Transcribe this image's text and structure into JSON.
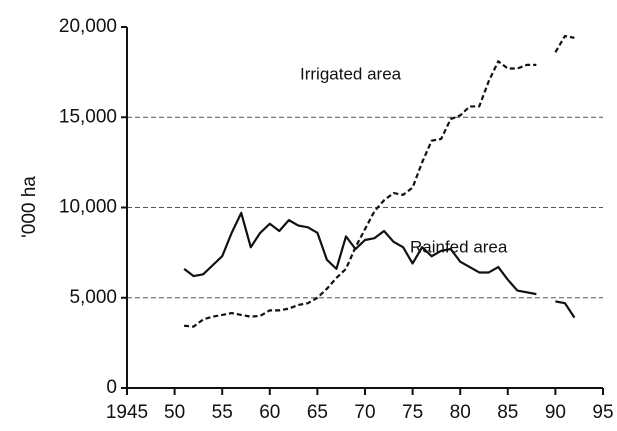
{
  "chart_data": {
    "type": "line",
    "y_label": "'000 ha",
    "x": [
      1951,
      1952,
      1953,
      1954,
      1955,
      1956,
      1957,
      1958,
      1959,
      1960,
      1961,
      1962,
      1963,
      1964,
      1965,
      1966,
      1967,
      1968,
      1969,
      1970,
      1971,
      1972,
      1973,
      1974,
      1975,
      1976,
      1977,
      1978,
      1979,
      1980,
      1981,
      1982,
      1983,
      1984,
      1985,
      1986,
      1987,
      1988,
      1989,
      1990,
      1991,
      1992
    ],
    "series": [
      {
        "name": "Irrigated area",
        "color": "#111111",
        "line_style": "dashed",
        "values": [
          3450,
          3400,
          3800,
          3950,
          4050,
          4150,
          4050,
          3950,
          4000,
          4300,
          4300,
          4400,
          4600,
          4700,
          5000,
          5500,
          6100,
          6600,
          7800,
          8800,
          9800,
          10400,
          10800,
          10700,
          11100,
          12500,
          13700,
          13800,
          14900,
          15100,
          15600,
          15600,
          17000,
          18100,
          17700,
          17700,
          17900,
          17900,
          null,
          18600,
          19500,
          19400
        ]
      },
      {
        "name": "Rainfed area",
        "color": "#111111",
        "line_style": "solid",
        "values": [
          6600,
          6200,
          6300,
          6800,
          7300,
          8600,
          9700,
          7800,
          8600,
          9100,
          8700,
          9300,
          9000,
          8900,
          8600,
          7100,
          6600,
          8400,
          7700,
          8200,
          8300,
          8700,
          8100,
          7800,
          6900,
          7800,
          7300,
          7600,
          7700,
          7000,
          6700,
          6400,
          6400,
          6700,
          6000,
          5400,
          5300,
          5200,
          null,
          4800,
          4700,
          3900
        ]
      }
    ],
    "xlim": [
      1945,
      1995
    ],
    "xticks": [
      {
        "value": 1945,
        "label": "1945"
      },
      {
        "value": 1950,
        "label": "50"
      },
      {
        "value": 1955,
        "label": "55"
      },
      {
        "value": 1960,
        "label": "60"
      },
      {
        "value": 1965,
        "label": "65"
      },
      {
        "value": 1970,
        "label": "70"
      },
      {
        "value": 1975,
        "label": "75"
      },
      {
        "value": 1980,
        "label": "80"
      },
      {
        "value": 1985,
        "label": "85"
      },
      {
        "value": 1990,
        "label": "90"
      },
      {
        "value": 1995,
        "label": "95"
      }
    ],
    "ylim": [
      0,
      20000
    ],
    "yticks": [
      0,
      {
        "value": 5000,
        "label": "5,000"
      },
      {
        "value": 10000,
        "label": "10,000"
      },
      {
        "value": 15000,
        "label": "15,000"
      },
      {
        "value": 20000,
        "label": "20,000"
      }
    ],
    "grid": true
  }
}
